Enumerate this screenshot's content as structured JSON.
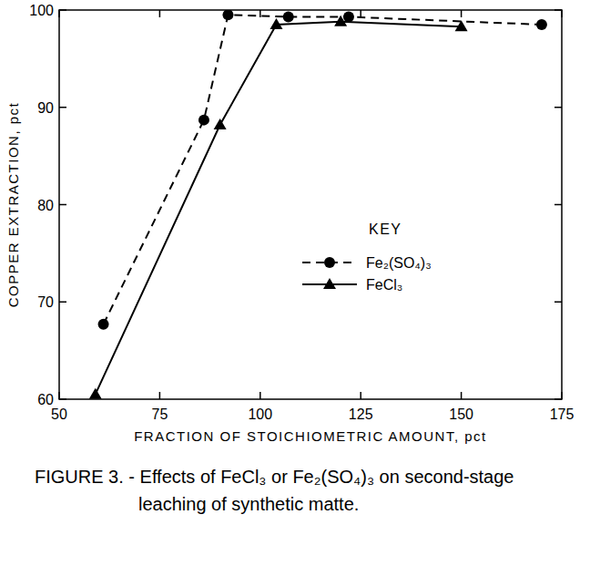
{
  "chart_data": {
    "type": "line",
    "title": "FIGURE 3. - Effects of FeCl₃ or Fe₂(SO₄)₃ on second-stage leaching of synthetic matte.",
    "x_label": "FRACTION OF STOICHIOMETRIC AMOUNT, pct",
    "y_label": "COPPER EXTRACTION, pct",
    "legend_title": "KEY",
    "xlim": [
      50,
      175
    ],
    "xticks": [
      50,
      75,
      100,
      125,
      150,
      175
    ],
    "ylim": [
      60,
      100
    ],
    "yticks": [
      60,
      70,
      80,
      90,
      100
    ],
    "grid": false,
    "legend": "right",
    "series": [
      {
        "name": "Fe₂(SO₄)₃",
        "color": "#000000",
        "marker": "circle",
        "line_style": "dashed",
        "x": [
          61,
          86,
          92,
          107,
          122,
          170
        ],
        "values": [
          67.7,
          88.7,
          99.5,
          99.3,
          99.3,
          98.5
        ]
      },
      {
        "name": "FeCl₃",
        "color": "#000000",
        "marker": "triangle",
        "line_style": "solid",
        "x": [
          59,
          90,
          104,
          120,
          150
        ],
        "values": [
          60.5,
          88.2,
          98.5,
          98.8,
          98.3
        ]
      }
    ]
  }
}
